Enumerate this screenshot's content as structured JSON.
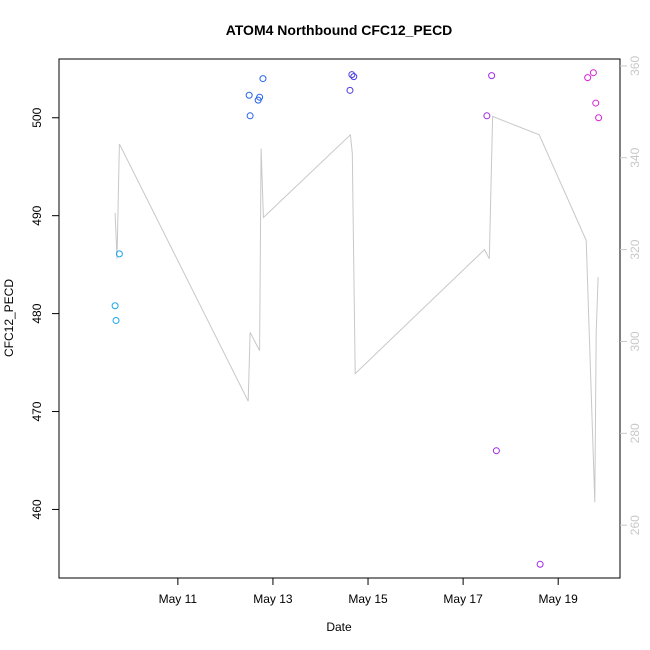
{
  "chart_data": {
    "type": "scatter",
    "title": "ATOM4 Northbound CFC12_PECD",
    "xlabel": "Date",
    "ylabel": "CFC12_PECD",
    "x_ticks": [
      "May 11",
      "May 13",
      "May 15",
      "May 17",
      "May 19"
    ],
    "x_tick_values": [
      11,
      13,
      15,
      17,
      19
    ],
    "xlim": [
      8.5,
      20.3
    ],
    "ylim": [
      453,
      506
    ],
    "y_ticks": [
      460,
      470,
      480,
      490,
      500
    ],
    "y2lim": [
      248.5,
      361.5
    ],
    "y2_ticks": [
      260,
      280,
      300,
      320,
      340,
      360
    ],
    "y2_color": "#c8c8c8",
    "points": [
      {
        "x": 9.68,
        "y": 480.8,
        "color": "#1aa6ee"
      },
      {
        "x": 9.7,
        "y": 479.3,
        "color": "#1aa6ee"
      },
      {
        "x": 9.77,
        "y": 486.1,
        "color": "#1aa6ee"
      },
      {
        "x": 12.5,
        "y": 502.3,
        "color": "#2563ea"
      },
      {
        "x": 12.52,
        "y": 500.2,
        "color": "#2563ea"
      },
      {
        "x": 12.69,
        "y": 501.8,
        "color": "#2563ea"
      },
      {
        "x": 12.72,
        "y": 502.1,
        "color": "#2563ea"
      },
      {
        "x": 12.79,
        "y": 504.0,
        "color": "#2563ea"
      },
      {
        "x": 14.62,
        "y": 502.8,
        "color": "#4b3ee6"
      },
      {
        "x": 14.66,
        "y": 504.4,
        "color": "#4b3ee6"
      },
      {
        "x": 14.7,
        "y": 504.2,
        "color": "#4b3ee6"
      },
      {
        "x": 17.5,
        "y": 500.2,
        "color": "#a12ae6"
      },
      {
        "x": 17.6,
        "y": 504.3,
        "color": "#a12ae6"
      },
      {
        "x": 17.7,
        "y": 466.0,
        "color": "#a12ae6"
      },
      {
        "x": 18.62,
        "y": 454.4,
        "color": "#a12ae6"
      },
      {
        "x": 19.62,
        "y": 504.1,
        "color": "#d924d4"
      },
      {
        "x": 19.74,
        "y": 504.6,
        "color": "#d924d4"
      },
      {
        "x": 19.79,
        "y": 501.5,
        "color": "#d924d4"
      },
      {
        "x": 19.85,
        "y": 500.0,
        "color": "#d924d4"
      }
    ],
    "secondary_series": {
      "color": "#c8c8c8",
      "x": [
        9.68,
        9.72,
        9.77,
        12.48,
        12.52,
        12.72,
        12.75,
        12.8,
        14.63,
        14.67,
        14.73,
        17.45,
        17.55,
        17.62,
        18.6,
        19.59,
        19.77,
        19.8,
        19.84
      ],
      "y": [
        328,
        318,
        343,
        287,
        302,
        298,
        342,
        327,
        345,
        341,
        293,
        320,
        318,
        349,
        345,
        322,
        265,
        302,
        314
      ]
    }
  }
}
